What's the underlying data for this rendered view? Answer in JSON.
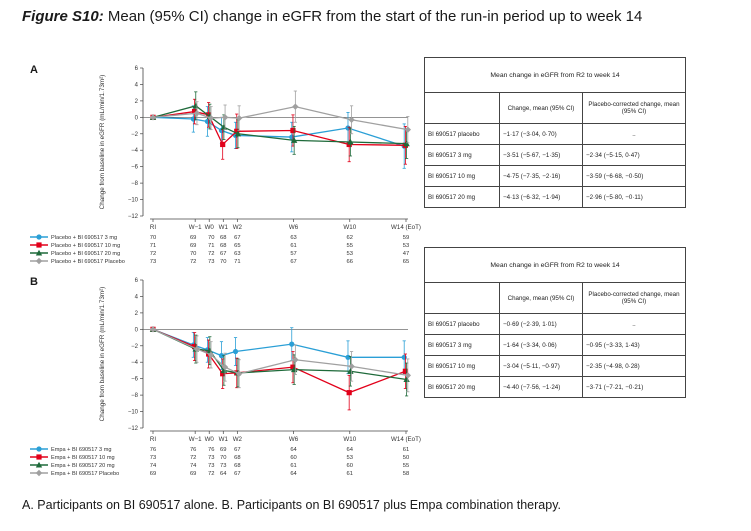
{
  "figure": {
    "label": "Figure S10:",
    "title": "Mean (95% CI) change in eGFR from the start of the run-in period up to week 14",
    "caption": "A. Participants on BI 690517 alone. B. Participants on BI 690517 plus Empa combination therapy."
  },
  "colors": {
    "blue": "#2a9fd6",
    "red": "#e2001a",
    "green": "#1e6a3a",
    "grey": "#a0a0a0"
  },
  "chart_data": [
    {
      "panel": "A",
      "type": "line",
      "ylabel": "Change from baseline in eGFR (mL/min/1.73m²)",
      "ylim": [
        -12,
        6
      ],
      "yticks": [
        "6",
        "4",
        "2",
        "0",
        "−2",
        "−4",
        "−6",
        "−8",
        "−10",
        "−12"
      ],
      "categories": [
        "RI",
        "W−1",
        "W0",
        "W1",
        "W2",
        "W6",
        "W10",
        "W14 (EoT)"
      ],
      "x": [
        0,
        3,
        4,
        5,
        6,
        10,
        14,
        18
      ],
      "series": [
        {
          "name": "Placebo + BI 690517 3 mg",
          "color": "#2a9fd6",
          "marker": "circle",
          "values": [
            0,
            -0.2,
            -0.5,
            -1.6,
            -2.2,
            -2.4,
            -1.3,
            -3.5
          ],
          "lower": [
            0,
            -1.8,
            -2.3,
            -3.2,
            -3.8,
            -4.2,
            -3.2,
            -6.2
          ],
          "upper": [
            0,
            1.4,
            1.3,
            0,
            -0.6,
            -0.6,
            0.6,
            -0.8
          ],
          "n": [
            "70",
            "69",
            "70",
            "68",
            "67",
            "63",
            "62",
            "59"
          ]
        },
        {
          "name": "Placebo + BI 690517 10 mg",
          "color": "#e2001a",
          "marker": "square",
          "values": [
            0,
            0.7,
            0.3,
            -3.3,
            -1.7,
            -1.6,
            -3.3,
            -3.4
          ],
          "lower": [
            0,
            -0.8,
            -1.2,
            -5.1,
            -3.8,
            -3.5,
            -5.4,
            -5.7
          ],
          "upper": [
            0,
            2.2,
            1.8,
            -1.5,
            0.4,
            0.3,
            -1.2,
            -1.1
          ],
          "n": [
            "71",
            "69",
            "71",
            "68",
            "65",
            "61",
            "55",
            "53"
          ]
        },
        {
          "name": "Placebo + BI 690517 20 mg",
          "color": "#1e6a3a",
          "marker": "triangle",
          "values": [
            0,
            1.4,
            0.1,
            -1.2,
            -2.0,
            -2.8,
            -3.0,
            -3.2
          ],
          "lower": [
            0,
            -0.3,
            -1.4,
            -2.7,
            -3.7,
            -4.5,
            -4.7,
            -5.0
          ],
          "upper": [
            0,
            3.1,
            1.6,
            0.3,
            -0.3,
            -1.1,
            -1.3,
            -1.4
          ],
          "n": [
            "72",
            "70",
            "72",
            "67",
            "63",
            "57",
            "53",
            "47"
          ]
        },
        {
          "name": "Placebo + BI 690517 Placebo",
          "color": "#a0a0a0",
          "marker": "diamond",
          "values": [
            0,
            0.5,
            -0.1,
            0,
            -0.1,
            1.3,
            -0.3,
            -1.5
          ],
          "lower": [
            0,
            -0.9,
            -1.5,
            -1.5,
            -1.6,
            -0.6,
            -2.0,
            -3.1
          ],
          "upper": [
            0,
            1.9,
            1.3,
            1.5,
            1.4,
            3.2,
            1.4,
            0.1
          ],
          "n": [
            "73",
            "72",
            "73",
            "70",
            "71",
            "67",
            "66",
            "65"
          ]
        }
      ]
    },
    {
      "panel": "B",
      "type": "line",
      "ylabel": "Change from baseline in eGFR (mL/min/1.73m²)",
      "ylim": [
        -12,
        6
      ],
      "yticks": [
        "6",
        "4",
        "2",
        "0",
        "−2",
        "−4",
        "−6",
        "−8",
        "−10",
        "−12"
      ],
      "categories": [
        "RI",
        "W−1",
        "W0",
        "W1",
        "W2",
        "W6",
        "W10",
        "W14 (EoT)"
      ],
      "x": [
        0,
        3,
        4,
        5,
        6,
        10,
        14,
        18
      ],
      "series": [
        {
          "name": "Empa + BI 690517 3 mg",
          "color": "#2a9fd6",
          "marker": "circle",
          "values": [
            0,
            -1.9,
            -2.5,
            -3.2,
            -2.7,
            -1.8,
            -3.4,
            -3.4
          ],
          "lower": [
            0,
            -3.4,
            -4.0,
            -4.9,
            -4.4,
            -3.8,
            -5.4,
            -5.4
          ],
          "upper": [
            0,
            -0.4,
            -1.0,
            -1.5,
            -1.0,
            0.2,
            -1.4,
            -1.4
          ],
          "n": [
            "76",
            "76",
            "76",
            "69",
            "67",
            "64",
            "64",
            "61"
          ]
        },
        {
          "name": "Empa + BI 690517 10 mg",
          "color": "#e2001a",
          "marker": "square",
          "values": [
            0,
            -2.1,
            -3.0,
            -5.4,
            -5.3,
            -4.6,
            -7.7,
            -5.1
          ],
          "lower": [
            0,
            -3.8,
            -4.7,
            -7.2,
            -7.1,
            -6.5,
            -9.8,
            -7.2
          ],
          "upper": [
            0,
            -0.4,
            -1.3,
            -3.6,
            -3.5,
            -2.7,
            -5.6,
            -3.0
          ],
          "n": [
            "73",
            "72",
            "73",
            "70",
            "68",
            "60",
            "53",
            "50"
          ]
        },
        {
          "name": "Empa + BI 690517 20 mg",
          "color": "#1e6a3a",
          "marker": "triangle",
          "values": [
            0,
            -2.4,
            -2.6,
            -5.0,
            -5.3,
            -4.9,
            -5.1,
            -6.1
          ],
          "lower": [
            0,
            -4.1,
            -4.3,
            -6.8,
            -7.0,
            -6.7,
            -6.9,
            -8.1
          ],
          "upper": [
            0,
            -0.7,
            -0.9,
            -3.2,
            -3.6,
            -3.1,
            -3.3,
            -4.1
          ],
          "n": [
            "74",
            "74",
            "73",
            "73",
            "68",
            "61",
            "60",
            "55"
          ]
        },
        {
          "name": "Empa + BI 690517 Placebo",
          "color": "#a0a0a0",
          "marker": "diamond",
          "values": [
            0,
            -2.4,
            -3.1,
            -4.6,
            -5.4,
            -3.7,
            -4.5,
            -5.6
          ],
          "lower": [
            0,
            -4.0,
            -4.7,
            -6.3,
            -7.1,
            -5.5,
            -6.3,
            -7.6
          ],
          "upper": [
            0,
            -0.8,
            -1.5,
            -2.9,
            -3.7,
            -1.9,
            -2.7,
            -3.6
          ],
          "n": [
            "69",
            "69",
            "72",
            "64",
            "67",
            "64",
            "61",
            "58"
          ]
        }
      ]
    }
  ],
  "tables": [
    {
      "title": "Mean change in eGFR from R2 to week 14",
      "col1": "Change, mean (95% CI)",
      "col2": "Placebo-corrected change, mean (95% CI)",
      "rows": [
        {
          "group": "BI 690517 placebo",
          "change": "−1·17 (−3·04, 0·70)",
          "corrected": ".."
        },
        {
          "group": "BI 690517 3 mg",
          "change": "−3·51 (−5·67, −1·35)",
          "corrected": "−2·34 (−5·15, 0·47)"
        },
        {
          "group": "BI 690517 10 mg",
          "change": "−4·75 (−7·35, −2·16)",
          "corrected": "−3·59 (−6·68, −0·50)"
        },
        {
          "group": "BI 690517 20 mg",
          "change": "−4·13 (−6·32, −1·94)",
          "corrected": "−2·96 (−5·80, −0·11)"
        }
      ]
    },
    {
      "title": "Mean change in eGFR from R2 to week 14",
      "col1": "Change, mean (95% CI)",
      "col2": "Placebo-corrected change, mean (95% CI)",
      "rows": [
        {
          "group": "BI 690517 placebo",
          "change": "−0·69 (−2·39, 1·01)",
          "corrected": ".."
        },
        {
          "group": "BI 690517 3 mg",
          "change": "−1·64 (−3·34, 0·06)",
          "corrected": "−0·95 (−3·33, 1·43)"
        },
        {
          "group": "BI 690517 10 mg",
          "change": "−3·04 (−5·11, −0·97)",
          "corrected": "−2·35 (−4·98, 0·28)"
        },
        {
          "group": "BI 690517 20 mg",
          "change": "−4·40 (−7·56, −1·24)",
          "corrected": "−3·71 (−7·21, −0·21)"
        }
      ]
    }
  ]
}
